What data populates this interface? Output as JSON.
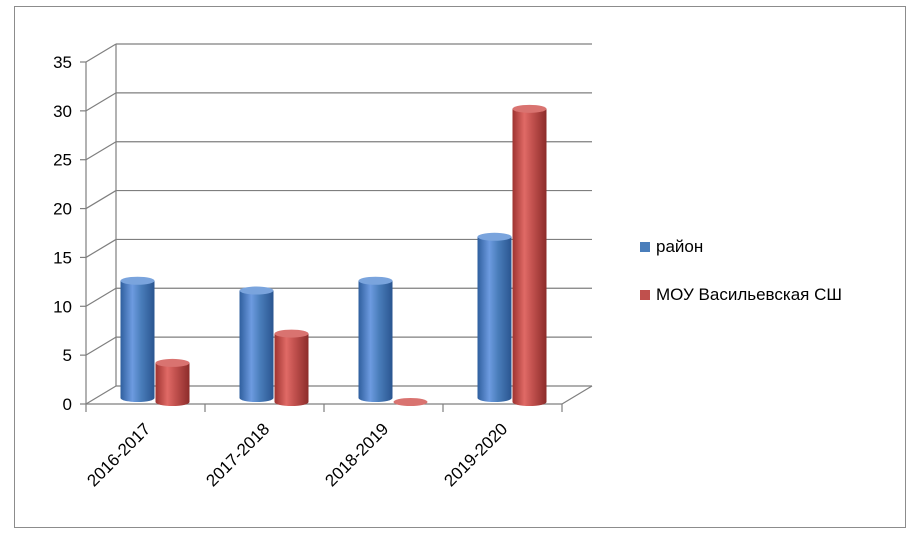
{
  "chart_data": {
    "type": "bar",
    "title": "",
    "xlabel": "",
    "ylabel": "",
    "categories": [
      "2016-2017",
      "2017-2018",
      "2018-2019",
      "2019-2020"
    ],
    "series": [
      {
        "name": "район",
        "values": [
          12,
          11,
          12,
          16.5
        ],
        "color": "#4a7ebb"
      },
      {
        "name": "МОУ Васильевская СШ",
        "values": [
          4,
          7,
          0,
          30
        ],
        "color": "#c0504d"
      }
    ],
    "ylim": [
      0,
      35
    ],
    "yticks": [
      "0",
      "5",
      "10",
      "15",
      "20",
      "25",
      "30",
      "35"
    ],
    "grid": true,
    "legend_position": "right",
    "style": "3d-cylinder"
  }
}
